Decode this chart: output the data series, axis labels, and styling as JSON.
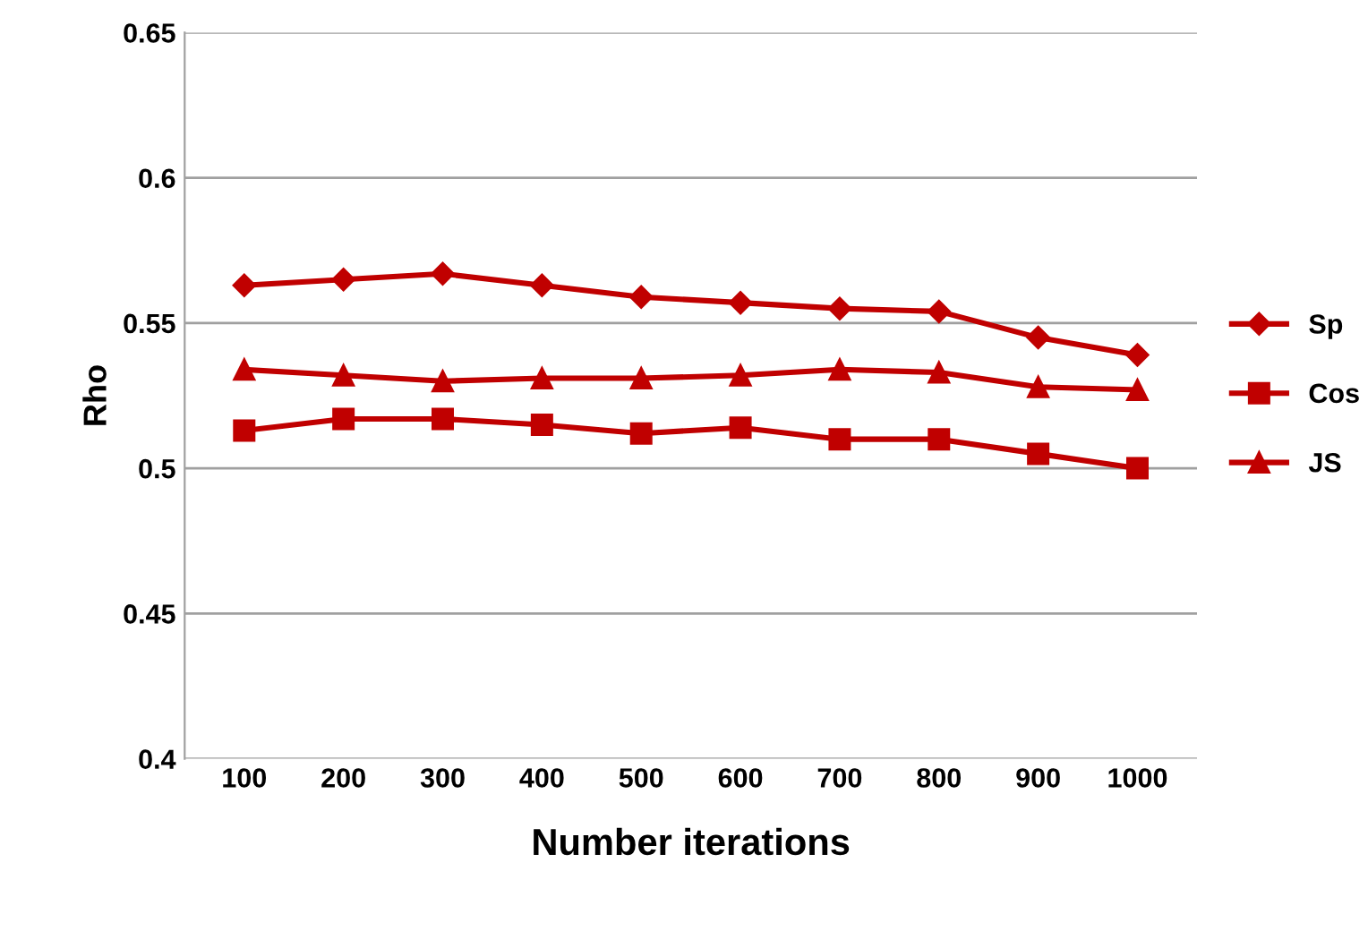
{
  "chart_data": {
    "type": "line",
    "xlabel": "Number iterations",
    "ylabel": "Rho",
    "categories": [
      "100",
      "200",
      "300",
      "400",
      "500",
      "600",
      "700",
      "800",
      "900",
      "1000"
    ],
    "series": [
      {
        "name": "Sp",
        "color": "#c00000",
        "marker": "diamond",
        "values": [
          0.563,
          0.565,
          0.567,
          0.563,
          0.559,
          0.557,
          0.555,
          0.554,
          0.545,
          0.539
        ]
      },
      {
        "name": "Cos",
        "color": "#c00000",
        "marker": "square",
        "values": [
          0.513,
          0.517,
          0.517,
          0.515,
          0.512,
          0.514,
          0.51,
          0.51,
          0.505,
          0.5
        ]
      },
      {
        "name": "JS",
        "color": "#c00000",
        "marker": "triangle",
        "values": [
          0.534,
          0.532,
          0.53,
          0.531,
          0.531,
          0.532,
          0.534,
          0.533,
          0.528,
          0.527
        ]
      }
    ],
    "ylim": [
      0.4,
      0.65
    ],
    "yticks": [
      0.4,
      0.45,
      0.5,
      0.55,
      0.6,
      0.65
    ],
    "grid": "y",
    "legend": "right",
    "line_style": "solid"
  }
}
